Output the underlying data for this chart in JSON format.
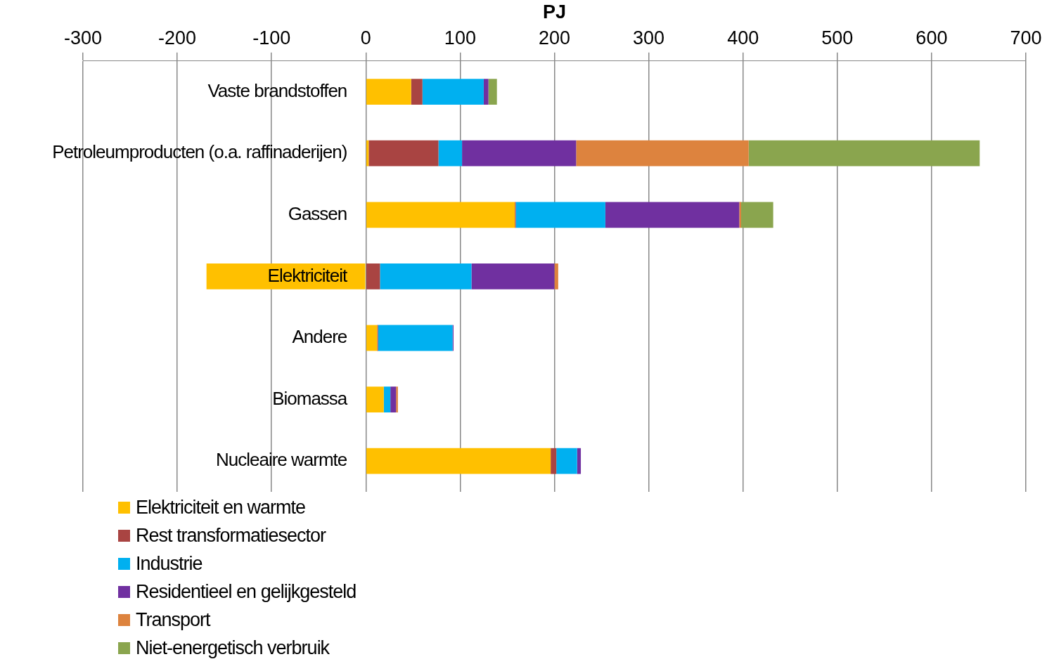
{
  "chart_data": {
    "type": "bar",
    "orientation": "horizontal",
    "stacked": true,
    "xlabel": "PJ",
    "categories": [
      "Vaste brandstoffen",
      "Petroleumproducten (o.a. raffinaderijen)",
      "Gassen",
      "Elektriciteit",
      "Andere",
      "Biomassa",
      "Nucleaire warmte"
    ],
    "series": [
      {
        "name": "Elektriciteit en warmte",
        "color": "#ffc000",
        "values": [
          48,
          3,
          158,
          -169,
          12,
          19,
          196
        ]
      },
      {
        "name": "Rest transformatiesector",
        "color": "#a94442",
        "values": [
          12,
          74,
          1,
          15,
          1,
          0,
          6
        ]
      },
      {
        "name": "Industrie",
        "color": "#00b0f0",
        "values": [
          65,
          25,
          95,
          97,
          79,
          7,
          22
        ]
      },
      {
        "name": "Residentieel en gelijkgesteld",
        "color": "#7030a0",
        "values": [
          5,
          121,
          142,
          88,
          1,
          6,
          4
        ]
      },
      {
        "name": "Transport",
        "color": "#dd833e",
        "values": [
          0,
          183,
          2,
          4,
          0,
          2,
          0
        ]
      },
      {
        "name": "Niet-energetisch verbruik",
        "color": "#8aa54e",
        "values": [
          9,
          245,
          34,
          0,
          0,
          0,
          0
        ]
      }
    ],
    "xlim": [
      -300,
      700
    ],
    "xticks": [
      -300,
      -200,
      -100,
      0,
      100,
      200,
      300,
      400,
      500,
      600,
      700
    ],
    "grid": "x",
    "legend": "bottom left"
  }
}
